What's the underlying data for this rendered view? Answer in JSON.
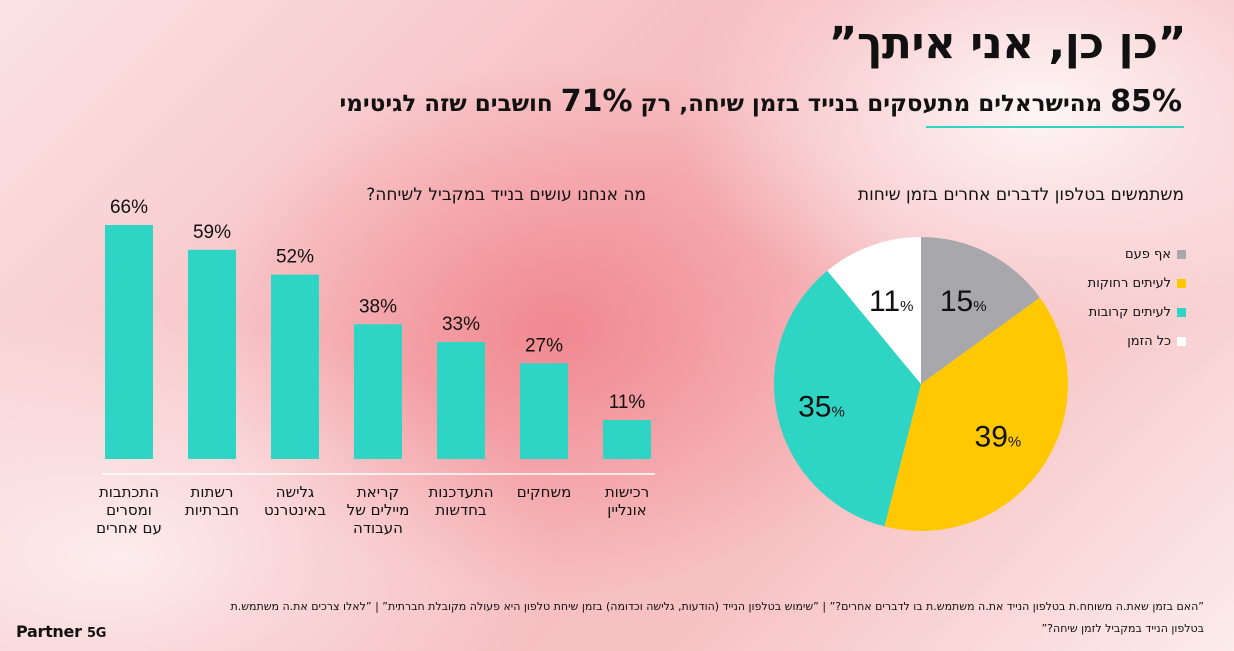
{
  "header": {
    "title": "”כן כן, אני איתך”",
    "subtitle_pre": "85",
    "subtitle_pct1": "%",
    "subtitle_mid": " מהישראלים מתעסקים בנייד בזמן שיחה, רק ",
    "subtitle_num2": "71",
    "subtitle_pct2": "%",
    "subtitle_post": " חושבים שזה לגיטימי"
  },
  "colors": {
    "accent": "#2ed5c4",
    "teal": "#2ed5c4",
    "yellow": "#ffc800",
    "gray": "#a7a7ac",
    "white": "#ffffff"
  },
  "chart_data": [
    {
      "type": "bar",
      "title": "מה אנחנו עושים בנייד במקביל לשיחה?",
      "categories": [
        "התכתבות\nומסרים\nעם אחרים",
        "רשתות\nחברתיות",
        "גלישה\nבאינטרנט",
        "קריאת\nמיילים של\nהעבודה",
        "התעדכנות\nבחדשות",
        "משחקים",
        "רכישות\nאונליין"
      ],
      "values": [
        66,
        59,
        52,
        38,
        33,
        27,
        11
      ],
      "value_labels": [
        "66%",
        "59%",
        "52%",
        "38%",
        "33%",
        "27%",
        "11%"
      ],
      "ylim": [
        0,
        66
      ],
      "color": "#2ed5c4"
    },
    {
      "type": "pie",
      "title": "משתמשים בטלפון לדברים אחרים בזמן שיחות",
      "slices": [
        {
          "label": "אף פעם",
          "value": 15,
          "color": "#a7a7ac"
        },
        {
          "label": "לעיתים רחוקות",
          "value": 39,
          "color": "#ffc800"
        },
        {
          "label": "לעיתים קרובות",
          "value": 35,
          "color": "#2ed5c4"
        },
        {
          "label": "כל הזמן",
          "value": 11,
          "color": "#ffffff"
        }
      ],
      "legend_position": "top-right"
    }
  ],
  "footnote": {
    "line1": "”האם בזמן שאת.ה משוחח.ת בטלפון הנייד את.ה משתמש.ת בו לדברים אחרים?” | ”שימוש בטלפון הנייד (הודעות, גלישה וכדומה) בזמן שיחת טלפון היא פעולה מקובלת חברתית” | ”לאלו צרכים את.ה משתמש.ת",
    "line2": "בטלפון הנייד במקביל לזמן שיחה?”"
  },
  "logo": {
    "brand": "Partner",
    "suffix": "5G"
  }
}
